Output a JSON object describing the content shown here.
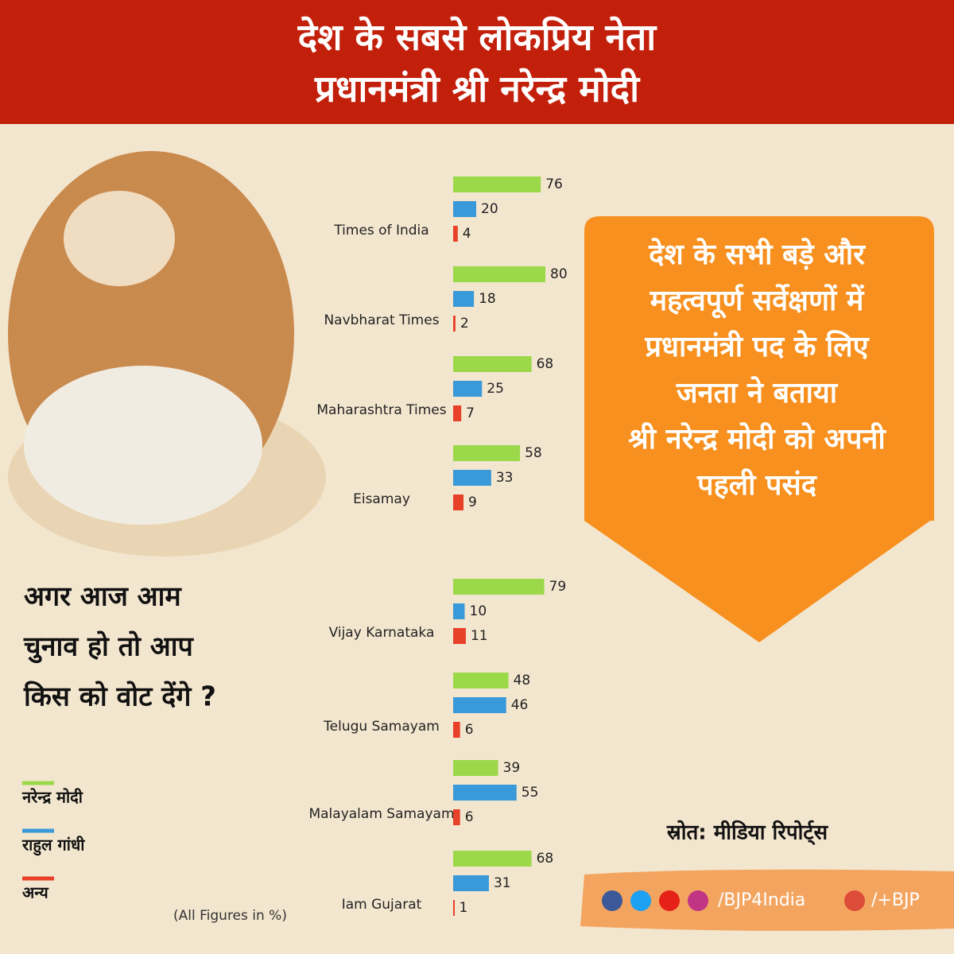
{
  "header": {
    "lines": [
      "देश के सबसे लोकप्रिय नेता",
      "प्रधानमंत्री श्री नरेन्द्र मोदी"
    ]
  },
  "callout": {
    "lines": [
      "देश के सभी बड़े और",
      "महत्वपूर्ण सर्वेक्षणों में",
      "प्रधानमंत्री पद के लिए",
      "जनता ने बताया",
      "श्री नरेन्द्र मोदी को अपनी",
      "पहली पसंद"
    ]
  },
  "question": {
    "lines": [
      "अगर आज आम",
      "चुनाव हो तो आप",
      "किस को वोट देंगे ?"
    ]
  },
  "source": "स्रोत: मीडिया रिपोर्ट्स",
  "social": {
    "handle": "/BJP4India",
    "gplus": "/+BJP"
  },
  "chart_data": {
    "type": "bar",
    "orientation": "horizontal",
    "note": "(All Figures in %)",
    "categories": [
      "Times of India",
      "Navbharat Times",
      "Maharashtra Times",
      "Eisamay",
      "Vijay Karnataka",
      "Telugu Samayam",
      "Malayalam Samayam",
      "Iam Gujarat"
    ],
    "xlim": [
      0,
      100
    ],
    "series": [
      {
        "name": "नरेन्द्र मोदी",
        "color": "#9bd84a",
        "values": [
          76,
          80,
          68,
          58,
          79,
          48,
          39,
          68
        ]
      },
      {
        "name": "राहुल गांधी",
        "color": "#3a9ad9",
        "values": [
          20,
          18,
          25,
          33,
          10,
          46,
          55,
          31
        ]
      },
      {
        "name": "अन्य",
        "color": "#e8412a",
        "values": [
          4,
          2,
          7,
          9,
          11,
          6,
          6,
          1
        ]
      }
    ]
  }
}
